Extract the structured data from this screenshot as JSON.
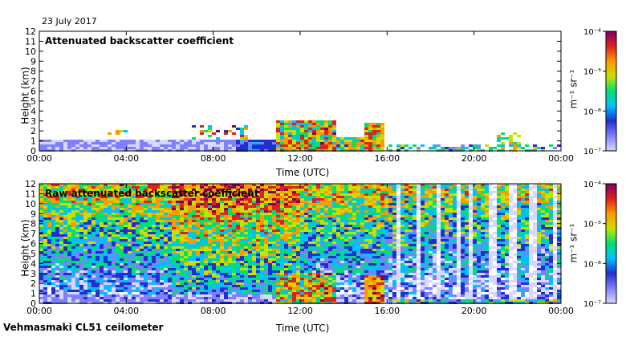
{
  "header": {
    "date": "23 July 2017"
  },
  "footer": {
    "instrument": "Vehmasmaki CL51 ceilometer"
  },
  "colors": {
    "colormap": [
      "#d8d8ff",
      "#8080ff",
      "#2030d0",
      "#00c0ff",
      "#00e070",
      "#c8e000",
      "#ff9900",
      "#e02020",
      "#800060"
    ]
  },
  "chart_data": [
    {
      "type": "heatmap",
      "title": "Attenuated backscatter coefficient",
      "xlabel": "Time (UTC)",
      "ylabel": "Height (km)",
      "x_ticks": [
        "00:00",
        "04:00",
        "08:00",
        "12:00",
        "16:00",
        "20:00",
        "00:00"
      ],
      "xlim": [
        0,
        24
      ],
      "y_ticks": [
        "0",
        "1",
        "2",
        "3",
        "4",
        "5",
        "6",
        "7",
        "8",
        "9",
        "10",
        "11",
        "12"
      ],
      "ylim": [
        0,
        12
      ],
      "colorbar": {
        "unit": "m⁻¹ sr⁻¹",
        "scale": "log",
        "ticks": [
          "10⁻⁷",
          "10⁻⁶",
          "10⁻⁵",
          "10⁻⁴"
        ],
        "range": [
          1e-07,
          0.0001
        ]
      }
    },
    {
      "type": "heatmap",
      "title": "Raw attenuated backscatter coefficient",
      "xlabel": "Time (UTC)",
      "ylabel": "Height (km)",
      "x_ticks": [
        "00:00",
        "04:00",
        "08:00",
        "12:00",
        "16:00",
        "20:00",
        "00:00"
      ],
      "xlim": [
        0,
        24
      ],
      "y_ticks": [
        "0",
        "1",
        "2",
        "3",
        "4",
        "5",
        "6",
        "7",
        "8",
        "9",
        "10",
        "11",
        "12"
      ],
      "ylim": [
        0,
        12
      ],
      "colorbar": {
        "unit": "m⁻¹ sr⁻¹",
        "scale": "log",
        "ticks": [
          "10⁻⁷",
          "10⁻⁶",
          "10⁻⁵",
          "10⁻⁴"
        ],
        "range": [
          1e-07,
          0.0001
        ]
      }
    }
  ]
}
